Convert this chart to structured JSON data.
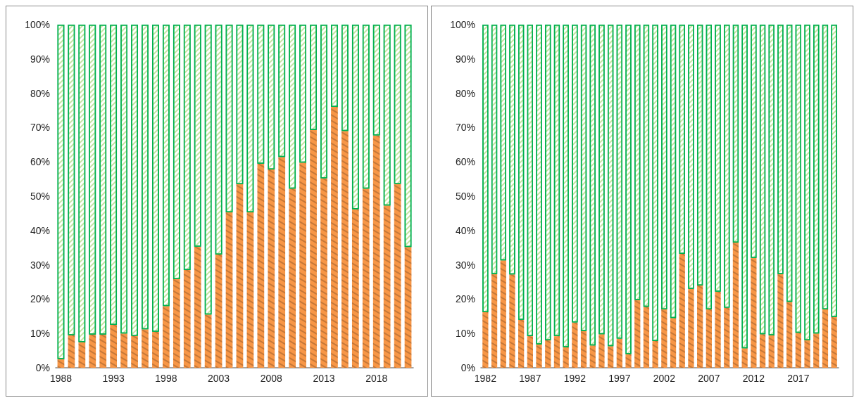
{
  "chart_data": [
    {
      "type": "bar",
      "stacked": true,
      "categories": [
        "1988",
        null,
        null,
        null,
        null,
        "1993",
        null,
        null,
        null,
        null,
        "1998",
        null,
        null,
        null,
        null,
        "2003",
        null,
        null,
        null,
        null,
        "2008",
        null,
        null,
        null,
        null,
        "2013",
        null,
        null,
        null,
        null,
        "2018",
        null,
        null,
        null
      ],
      "series": [
        {
          "color": "#f79646",
          "values": [
            2.5,
            9.5,
            7.5,
            9.7,
            9.7,
            12.5,
            10,
            9.3,
            11.2,
            10.5,
            18,
            25.8,
            28.5,
            35.3,
            15.5,
            33,
            45.3,
            53.5,
            45.3,
            59.5,
            57.8,
            61.4,
            52.2,
            59.8,
            69.3,
            55.2,
            76,
            69,
            46.2,
            52.2,
            67.7,
            47.3,
            53.6,
            35.2
          ]
        },
        {
          "color": "#00b050",
          "values": [
            97.5,
            90.5,
            92.5,
            90.3,
            90.3,
            87.5,
            90,
            90.7,
            88.8,
            89.5,
            82,
            74.2,
            71.5,
            64.7,
            84.5,
            67,
            54.7,
            46.5,
            54.7,
            40.5,
            42.2,
            38.6,
            47.8,
            40.2,
            30.7,
            44.8,
            24,
            31,
            53.8,
            47.8,
            32.3,
            52.7,
            46.4,
            64.8
          ]
        }
      ],
      "ylim": [
        0,
        100
      ],
      "yticks": [
        {
          "value": 0,
          "label": "0%"
        },
        {
          "value": 10,
          "label": "10%"
        },
        {
          "value": 20,
          "label": "20%"
        },
        {
          "value": 30,
          "label": "30%"
        },
        {
          "value": 40,
          "label": "40%"
        },
        {
          "value": 50,
          "label": "50%"
        },
        {
          "value": 60,
          "label": "60%"
        },
        {
          "value": 70,
          "label": "70%"
        },
        {
          "value": 80,
          "label": "80%"
        },
        {
          "value": 90,
          "label": "90%"
        },
        {
          "value": 100,
          "label": "100%"
        }
      ]
    },
    {
      "type": "bar",
      "stacked": true,
      "categories": [
        "1982",
        null,
        null,
        null,
        null,
        "1987",
        null,
        null,
        null,
        null,
        "1992",
        null,
        null,
        null,
        null,
        "1997",
        null,
        null,
        null,
        null,
        "2002",
        null,
        null,
        null,
        null,
        "2007",
        null,
        null,
        null,
        null,
        "2012",
        null,
        null,
        null,
        null,
        "2017",
        null,
        null,
        null,
        null
      ],
      "series": [
        {
          "color": "#f79646",
          "values": [
            16.2,
            27.3,
            31.3,
            27.2,
            14,
            9.2,
            6.8,
            8,
            9.2,
            6,
            13.2,
            10.7,
            6.5,
            9.8,
            6.3,
            8.5,
            4,
            19.8,
            17.8,
            7.8,
            17,
            14.5,
            33.2,
            23,
            24,
            17,
            22.2,
            17.5,
            36.5,
            5.7,
            32,
            9.8,
            9.5,
            27.3,
            19.2,
            10.2,
            8,
            10,
            17,
            14.8
          ]
        },
        {
          "color": "#00b050",
          "values": [
            83.8,
            72.7,
            68.7,
            72.8,
            86,
            90.8,
            93.2,
            92,
            90.8,
            94,
            86.8,
            89.3,
            93.5,
            90.2,
            93.7,
            91.5,
            96,
            80.2,
            82.2,
            92.2,
            83,
            85.5,
            66.8,
            77,
            76,
            83,
            77.8,
            82.5,
            63.5,
            94.3,
            68,
            90.2,
            90.5,
            72.7,
            80.8,
            89.8,
            92,
            90,
            83,
            85.2
          ]
        }
      ],
      "ylim": [
        0,
        100
      ],
      "yticks": [
        {
          "value": 0,
          "label": "0%"
        },
        {
          "value": 10,
          "label": "10%"
        },
        {
          "value": 20,
          "label": "20%"
        },
        {
          "value": 30,
          "label": "30%"
        },
        {
          "value": 40,
          "label": "40%"
        },
        {
          "value": 50,
          "label": "50%"
        },
        {
          "value": 60,
          "label": "60%"
        },
        {
          "value": 70,
          "label": "70%"
        },
        {
          "value": 80,
          "label": "80%"
        },
        {
          "value": 90,
          "label": "90%"
        },
        {
          "value": 100,
          "label": "100%"
        }
      ]
    }
  ]
}
